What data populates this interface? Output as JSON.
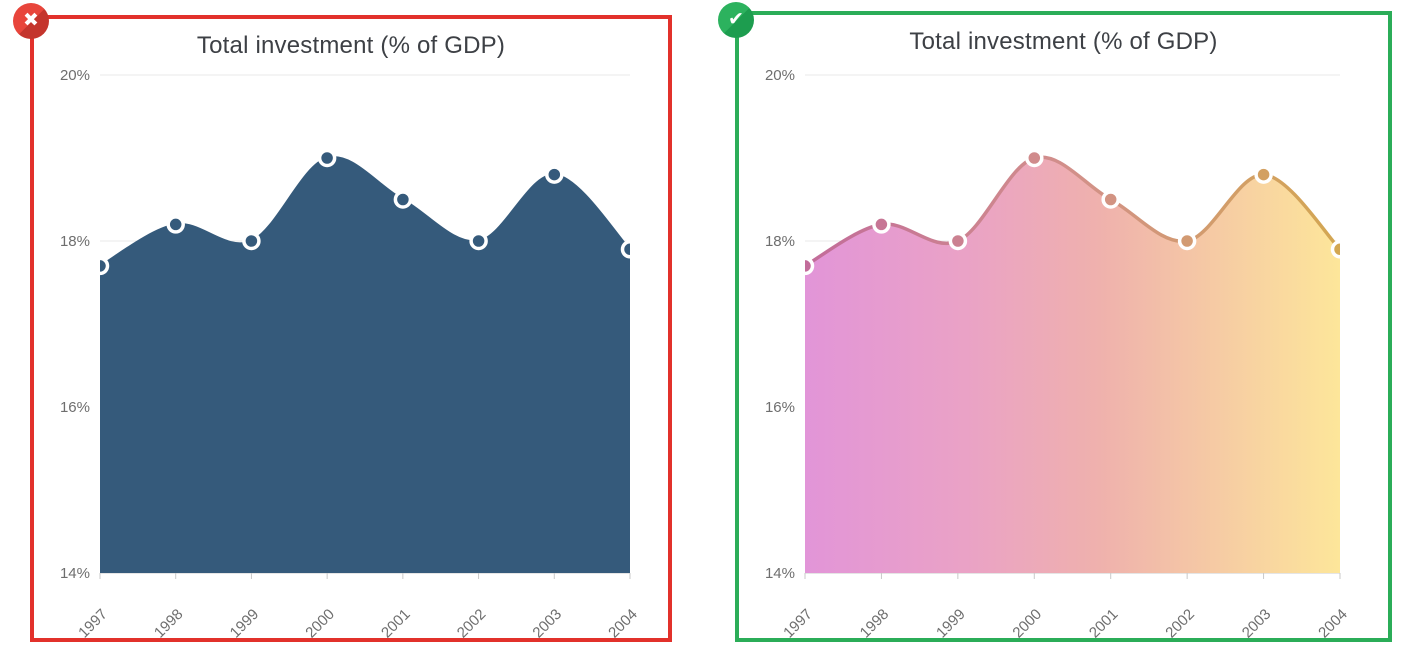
{
  "panels": [
    {
      "status": "incorrect",
      "badge_glyph": "✖",
      "badge_color": "#E8453B",
      "badge_shade": "#C4352D",
      "border_color": "#E2312B",
      "title": "Total investment (% of GDP)"
    },
    {
      "status": "correct",
      "badge_glyph": "✔",
      "badge_color": "#2CB25E",
      "badge_shade": "#1D9D4F",
      "border_color": "#2BAD58",
      "title": "Total investment (% of GDP)"
    }
  ],
  "chart_data": [
    {
      "type": "area",
      "title": "Total investment (% of GDP)",
      "x": [
        "1997",
        "1998",
        "1999",
        "2000",
        "2001",
        "2002",
        "2003",
        "2004"
      ],
      "values": [
        17.7,
        18.2,
        18.0,
        19.0,
        18.5,
        18.0,
        18.8,
        17.9
      ],
      "ylim": [
        14,
        20
      ],
      "ytick_values": [
        20,
        18,
        16,
        14
      ],
      "ytick_labels": [
        "20%",
        "18%",
        "16%",
        "14%"
      ],
      "grid": true,
      "legend": "none",
      "style": {
        "fill": "#355A7B",
        "line": "#355A7B",
        "marker": "#355A7B",
        "marker_ring": "#FFFFFF"
      }
    },
    {
      "type": "area",
      "title": "Total investment (% of GDP)",
      "x": [
        "1997",
        "1998",
        "1999",
        "2000",
        "2001",
        "2002",
        "2003",
        "2004"
      ],
      "values": [
        17.7,
        18.2,
        18.0,
        19.0,
        18.5,
        18.0,
        18.8,
        17.9
      ],
      "ylim": [
        14,
        20
      ],
      "ytick_values": [
        20,
        18,
        16,
        14
      ],
      "ytick_labels": [
        "20%",
        "18%",
        "16%",
        "14%"
      ],
      "grid": true,
      "legend": "none",
      "style": {
        "fill_gradient": [
          [
            0,
            "#E295D8"
          ],
          [
            0.3,
            "#EAA2C6"
          ],
          [
            0.55,
            "#EFB1AD"
          ],
          [
            1,
            "#FDE69A"
          ]
        ],
        "line_gradient": [
          [
            0,
            "#C26C9A"
          ],
          [
            0.5,
            "#D2908A"
          ],
          [
            1,
            "#D3A751"
          ]
        ],
        "marker_ring": "#FFFFFF"
      }
    }
  ]
}
